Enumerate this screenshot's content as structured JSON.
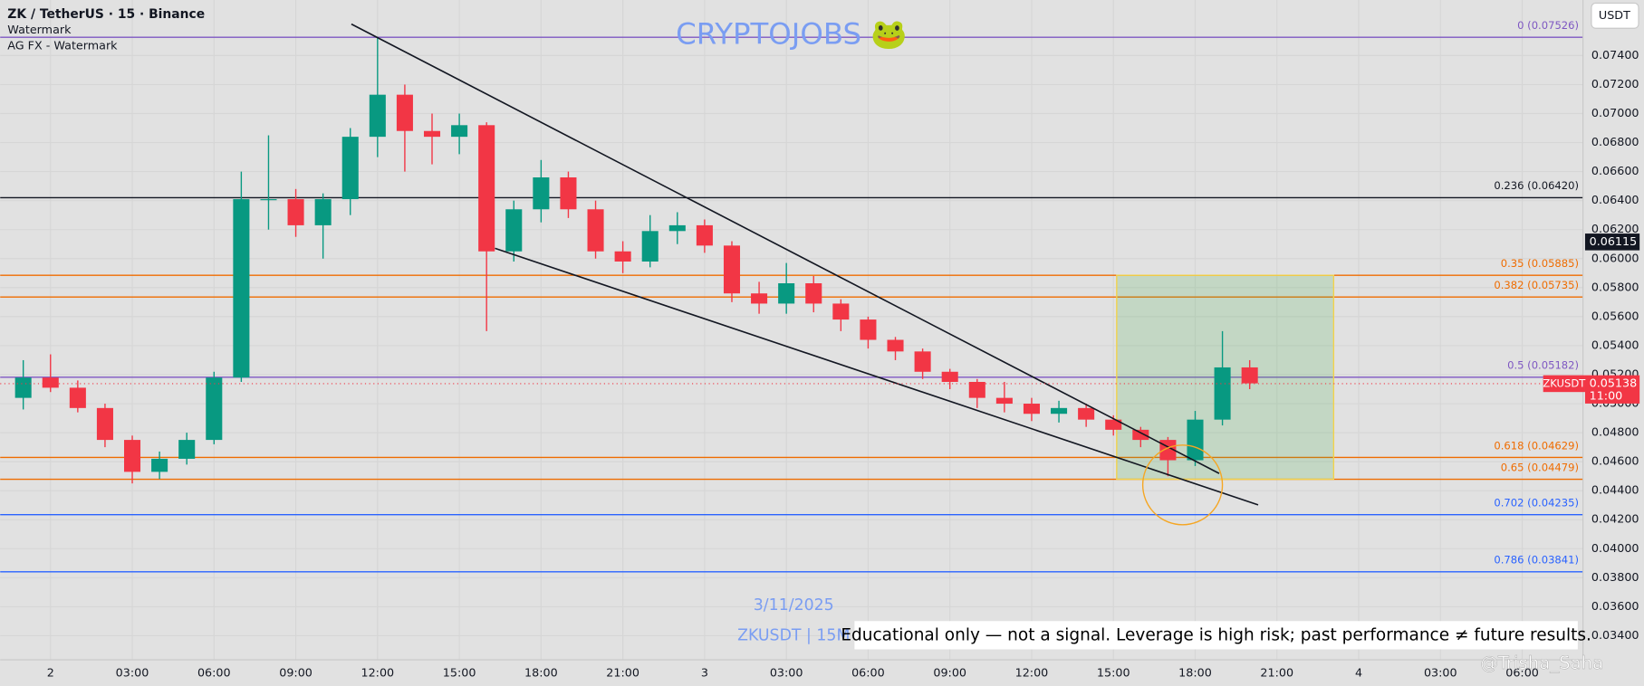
{
  "chart_data": {
    "type": "candlestick",
    "title": "ZK / TetherUS · 15 · Binance",
    "indicators": [
      "Watermark",
      "AG FX - Watermark"
    ],
    "watermark": "CRYPTOJOBS 🐸",
    "currency_button": "USDT",
    "date_label": "3/11/2025",
    "symbol_label": "ZKUSDT | 15M",
    "disclaimer": "Educational only — not a signal. Leverage is high risk; past performance ≠ future results.",
    "credit": "@Trisha_Saha",
    "symbol": "ZKUSDT",
    "countdown": "11:00",
    "last_price": 0.05138,
    "marker_price": 0.06115,
    "up_color": "#089981",
    "down_color": "#f23645",
    "x": [
      -1,
      0,
      1,
      2,
      3,
      4,
      5,
      6,
      7,
      8,
      9,
      10,
      11,
      12,
      13,
      14,
      15,
      16,
      17,
      18,
      19,
      20,
      21,
      22,
      23,
      24,
      25,
      26,
      27,
      28,
      29,
      30,
      31,
      32,
      33,
      34,
      35,
      36,
      37,
      38,
      39,
      40,
      41,
      42,
      43,
      44
    ],
    "open": [
      0.0504,
      0.0518,
      0.0511,
      0.0497,
      0.0475,
      0.0453,
      0.0462,
      0.0475,
      0.0518,
      0.0641,
      0.0641,
      0.0623,
      0.0641,
      0.0684,
      0.0713,
      0.0688,
      0.0684,
      0.0692,
      0.0605,
      0.0634,
      0.0656,
      0.0634,
      0.0605,
      0.0598,
      0.0619,
      0.0623,
      0.0609,
      0.0576,
      0.0569,
      0.0583,
      0.0569,
      0.0558,
      0.0544,
      0.0536,
      0.0522,
      0.0515,
      0.0504,
      0.05,
      0.0493,
      0.0497,
      0.0489,
      0.0482,
      0.0475,
      0.0461,
      0.0489,
      0.0525
    ],
    "high": [
      0.053,
      0.0534,
      0.0516,
      0.05,
      0.0478,
      0.0467,
      0.048,
      0.0522,
      0.066,
      0.0685,
      0.0648,
      0.0645,
      0.069,
      0.0752,
      0.072,
      0.07,
      0.07,
      0.0694,
      0.064,
      0.0668,
      0.066,
      0.064,
      0.0612,
      0.063,
      0.0632,
      0.0627,
      0.0612,
      0.0584,
      0.0597,
      0.0588,
      0.0572,
      0.056,
      0.0546,
      0.0538,
      0.0524,
      0.0517,
      0.0515,
      0.0504,
      0.0502,
      0.05,
      0.0492,
      0.0484,
      0.0477,
      0.0495,
      0.055,
      0.053
    ],
    "low": [
      0.0496,
      0.0508,
      0.0494,
      0.047,
      0.0445,
      0.0448,
      0.0458,
      0.0472,
      0.0515,
      0.062,
      0.0615,
      0.06,
      0.063,
      0.067,
      0.066,
      0.0665,
      0.0672,
      0.055,
      0.0598,
      0.0625,
      0.0628,
      0.06,
      0.059,
      0.0594,
      0.061,
      0.0604,
      0.057,
      0.0562,
      0.0562,
      0.0563,
      0.055,
      0.0538,
      0.053,
      0.0517,
      0.051,
      0.0497,
      0.0494,
      0.0488,
      0.0487,
      0.0484,
      0.0478,
      0.047,
      0.045,
      0.0457,
      0.0485,
      0.051
    ],
    "close": [
      0.0518,
      0.0511,
      0.0497,
      0.0475,
      0.0453,
      0.0462,
      0.0475,
      0.0518,
      0.0641,
      0.0641,
      0.0623,
      0.0641,
      0.0684,
      0.0713,
      0.0688,
      0.0684,
      0.0692,
      0.0605,
      0.0634,
      0.0656,
      0.0634,
      0.0605,
      0.0598,
      0.0619,
      0.0623,
      0.0609,
      0.0576,
      0.0569,
      0.0583,
      0.0569,
      0.0558,
      0.0544,
      0.0536,
      0.0522,
      0.0515,
      0.0504,
      0.05,
      0.0493,
      0.0497,
      0.0489,
      0.0482,
      0.0475,
      0.0461,
      0.0489,
      0.0525,
      0.0514
    ],
    "xlim": [
      -1.846,
      56.23
    ],
    "xticks": [
      {
        "value": 0,
        "label": "2"
      },
      {
        "value": 3,
        "label": "03:00"
      },
      {
        "value": 6,
        "label": "06:00"
      },
      {
        "value": 9,
        "label": "09:00"
      },
      {
        "value": 12,
        "label": "12:00"
      },
      {
        "value": 15,
        "label": "15:00"
      },
      {
        "value": 18,
        "label": "18:00"
      },
      {
        "value": 21,
        "label": "21:00"
      },
      {
        "value": 24,
        "label": "3"
      },
      {
        "value": 27,
        "label": "03:00"
      },
      {
        "value": 30,
        "label": "06:00"
      },
      {
        "value": 33,
        "label": "09:00"
      },
      {
        "value": 36,
        "label": "12:00"
      },
      {
        "value": 39,
        "label": "15:00"
      },
      {
        "value": 42,
        "label": "18:00"
      },
      {
        "value": 45,
        "label": "21:00"
      },
      {
        "value": 48,
        "label": "4"
      },
      {
        "value": 51,
        "label": "03:00"
      },
      {
        "value": 54,
        "label": "06:00"
      }
    ],
    "ylim": [
      0.03234,
      0.07783
    ],
    "yticks": [
      {
        "value": 0.034,
        "label": "0.03400"
      },
      {
        "value": 0.036,
        "label": "0.03600"
      },
      {
        "value": 0.038,
        "label": "0.03800"
      },
      {
        "value": 0.04,
        "label": "0.04000"
      },
      {
        "value": 0.042,
        "label": "0.04200"
      },
      {
        "value": 0.044,
        "label": "0.04400"
      },
      {
        "value": 0.046,
        "label": "0.04600"
      },
      {
        "value": 0.048,
        "label": "0.04800"
      },
      {
        "value": 0.05,
        "label": "0.05000"
      },
      {
        "value": 0.052,
        "label": "0.05200"
      },
      {
        "value": 0.054,
        "label": "0.05400"
      },
      {
        "value": 0.056,
        "label": "0.05600"
      },
      {
        "value": 0.058,
        "label": "0.05800"
      },
      {
        "value": 0.06,
        "label": "0.06000"
      },
      {
        "value": 0.062,
        "label": "0.06200"
      },
      {
        "value": 0.064,
        "label": "0.06400"
      },
      {
        "value": 0.066,
        "label": "0.06600"
      },
      {
        "value": 0.068,
        "label": "0.06800"
      },
      {
        "value": 0.07,
        "label": "0.07000"
      },
      {
        "value": 0.072,
        "label": "0.07200"
      },
      {
        "value": 0.074,
        "label": "0.07400"
      }
    ],
    "grid": true,
    "levels": [
      {
        "label": "0 (0.07526)",
        "value": 0.07526,
        "color": "#7e57c2"
      },
      {
        "label": "0.236 (0.06420)",
        "value": 0.0642,
        "color": "#131722"
      },
      {
        "label": "0.35 (0.05885)",
        "value": 0.05885,
        "color": "#ef6c00"
      },
      {
        "label": "0.382 (0.05735)",
        "value": 0.05735,
        "color": "#ef6c00"
      },
      {
        "label": "0.5 (0.05182)",
        "value": 0.05182,
        "color": "#7e57c2"
      },
      {
        "label": "0.618 (0.04629)",
        "value": 0.04629,
        "color": "#ef6c00"
      },
      {
        "label": "0.65 (0.04479)",
        "value": 0.04479,
        "color": "#ef6c00"
      },
      {
        "label": "0.702 (0.04235)",
        "value": 0.04235,
        "color": "#2962ff"
      },
      {
        "label": "0.786 (0.03841)",
        "value": 0.03841,
        "color": "#2962ff"
      }
    ],
    "trendlines": [
      {
        "x": [
          11.04,
          42.88
        ],
        "y": [
          0.07617,
          0.04519
        ]
      },
      {
        "x": [
          16.31,
          44.31
        ],
        "y": [
          0.06071,
          0.04302
        ]
      }
    ],
    "zone": {
      "x": [
        39.12,
        47.08
      ],
      "y": [
        0.05885,
        0.04479
      ]
    }
  }
}
